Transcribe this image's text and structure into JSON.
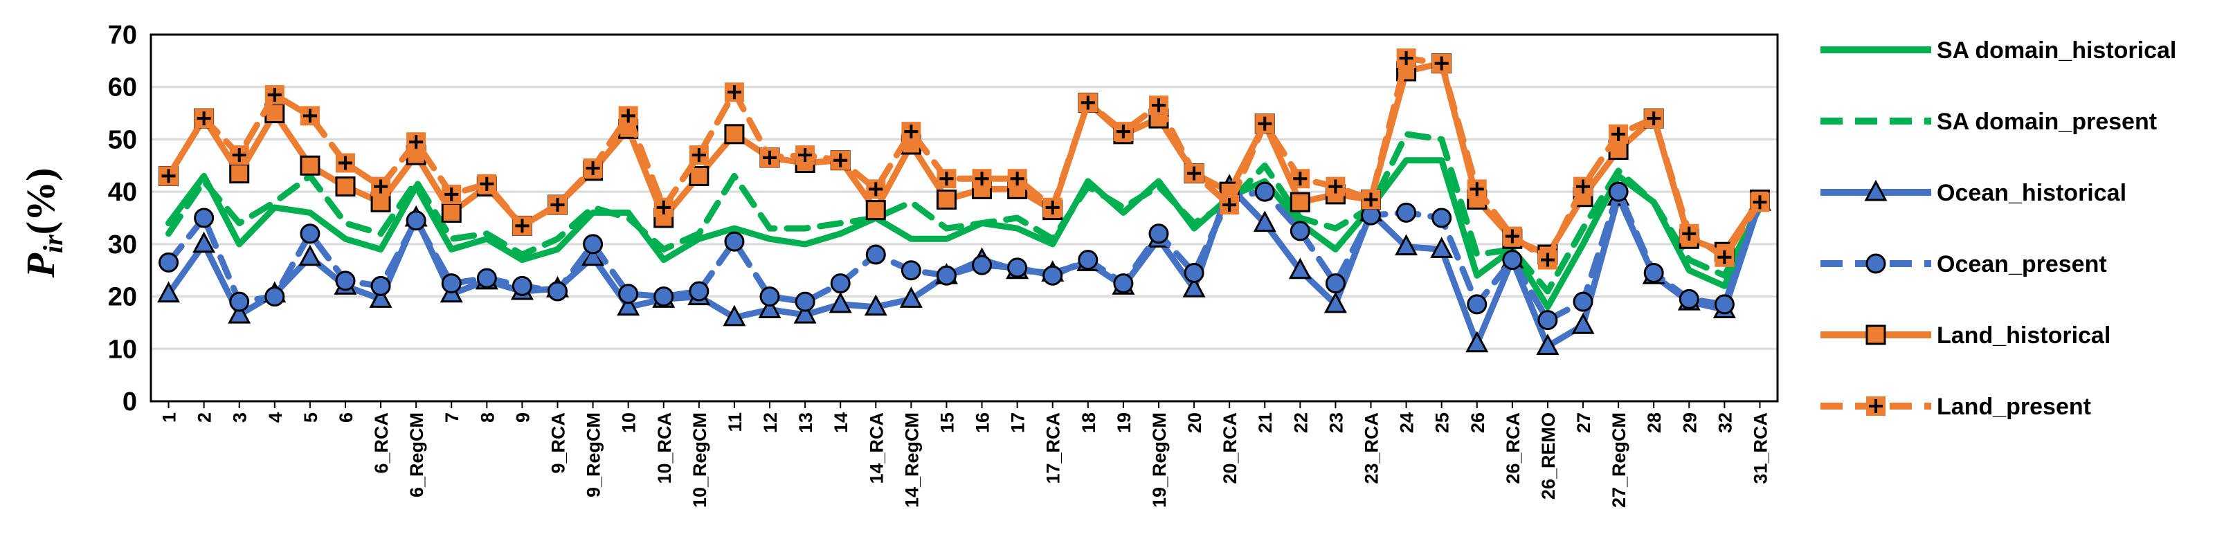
{
  "chart_data": {
    "type": "line",
    "title": "",
    "xlabel": "",
    "ylabel": {
      "symbol": "P",
      "subscript": "ir",
      "unit": "(%)"
    },
    "ylim": [
      0,
      70
    ],
    "yticks": [
      0,
      10,
      20,
      30,
      40,
      50,
      60,
      70
    ],
    "grid": true,
    "legend_position": "right",
    "categories": [
      "1",
      "2",
      "3",
      "4",
      "5",
      "6",
      "6_RCA",
      "6_RegCM",
      "7",
      "8",
      "9",
      "9_RCA",
      "9_RegCM",
      "10",
      "10_RCA",
      "10_RegCM",
      "11",
      "12",
      "13",
      "14",
      "14_RCA",
      "14_RegCM",
      "15",
      "16",
      "17",
      "17_RCA",
      "18",
      "19",
      "19_RegCM",
      "20",
      "20_RCA",
      "21",
      "22",
      "23",
      "23_RCA",
      "24",
      "25",
      "26",
      "26_RCA",
      "26_REMO",
      "27",
      "27_RegCM",
      "28",
      "29",
      "32",
      "31_RCA"
    ],
    "series": [
      {
        "name": "SA domain_historical",
        "color": "#00b050",
        "dash": "solid",
        "marker": "none",
        "values": [
          34,
          43,
          30,
          37,
          36,
          31,
          29,
          41,
          29,
          31,
          27,
          29,
          36,
          36,
          27,
          31,
          33,
          31,
          30,
          32,
          35,
          31,
          31,
          34,
          33,
          30,
          42,
          36,
          42,
          33,
          39,
          42,
          34,
          29,
          37,
          46,
          46,
          24,
          29,
          18,
          30,
          43,
          38,
          25,
          22,
          38
        ]
      },
      {
        "name": "SA domain_present",
        "color": "#00b050",
        "dash": "dash",
        "marker": "none",
        "values": [
          32,
          42,
          34,
          38,
          43,
          34,
          32,
          42,
          31,
          32,
          28,
          31,
          37,
          35,
          29,
          32,
          43,
          33,
          33,
          34,
          35,
          38,
          33,
          34,
          35,
          31,
          41,
          37,
          41,
          34,
          38,
          45,
          35,
          33,
          37,
          51,
          50,
          28,
          29,
          21,
          33,
          44,
          38,
          27,
          24,
          37
        ]
      },
      {
        "name": "Ocean_historical",
        "color": "#4472c4",
        "dash": "solid",
        "marker": "triangle",
        "values": [
          20.5,
          30,
          16.5,
          20.5,
          27.5,
          22,
          19.5,
          35,
          20.5,
          23,
          21,
          21.5,
          27.5,
          18,
          19.5,
          20,
          16,
          17.5,
          16.5,
          18.5,
          18,
          19.5,
          24,
          27,
          25,
          24.5,
          26.5,
          22,
          31,
          21.5,
          41,
          34,
          25,
          18.5,
          36,
          29.5,
          29,
          11,
          27,
          10.5,
          14.5,
          39,
          24,
          19,
          17.5,
          38
        ]
      },
      {
        "name": "Ocean_present",
        "color": "#4472c4",
        "dash": "dash",
        "marker": "circle",
        "values": [
          26.5,
          35,
          19,
          20,
          32,
          23,
          22,
          34.5,
          22.5,
          23.5,
          22,
          21,
          30,
          20.5,
          20,
          21,
          30.5,
          20,
          19,
          22.5,
          28,
          25,
          24,
          26,
          25.5,
          24,
          27,
          22.5,
          32,
          24.5,
          39,
          40,
          32.5,
          22.5,
          35.5,
          36,
          35,
          18.5,
          27,
          15.5,
          19,
          40,
          24.5,
          19.5,
          18.5,
          38.5
        ]
      },
      {
        "name": "Land_historical",
        "color": "#ed7d31",
        "dash": "solid",
        "marker": "square",
        "values": [
          43,
          54,
          43.5,
          55,
          45,
          41,
          38,
          47,
          36,
          41,
          33.5,
          37.5,
          44,
          52,
          35,
          43,
          51,
          46.5,
          45.5,
          46,
          36.5,
          49,
          38.5,
          40.5,
          40.5,
          36.5,
          57,
          51,
          54,
          43.5,
          40,
          53,
          38,
          39.5,
          38.5,
          63,
          64.5,
          38.5,
          31,
          28,
          39,
          48,
          54,
          31,
          28.5,
          38.5
        ]
      },
      {
        "name": "Land_present",
        "color": "#ed7d31",
        "dash": "dash",
        "marker": "plus",
        "values": [
          43,
          54,
          47,
          58.5,
          54.5,
          45.5,
          41,
          49.5,
          39.5,
          41.5,
          33.5,
          37.5,
          44.5,
          54.5,
          37,
          47,
          59,
          46.5,
          47,
          46,
          40.5,
          51.5,
          42.5,
          42.5,
          42.5,
          37,
          57,
          51.5,
          56.5,
          43.5,
          37.5,
          53,
          42.5,
          41,
          38.5,
          65.5,
          64.5,
          40.5,
          31.5,
          27,
          41,
          51,
          54,
          32,
          27.5,
          38
        ]
      }
    ]
  }
}
